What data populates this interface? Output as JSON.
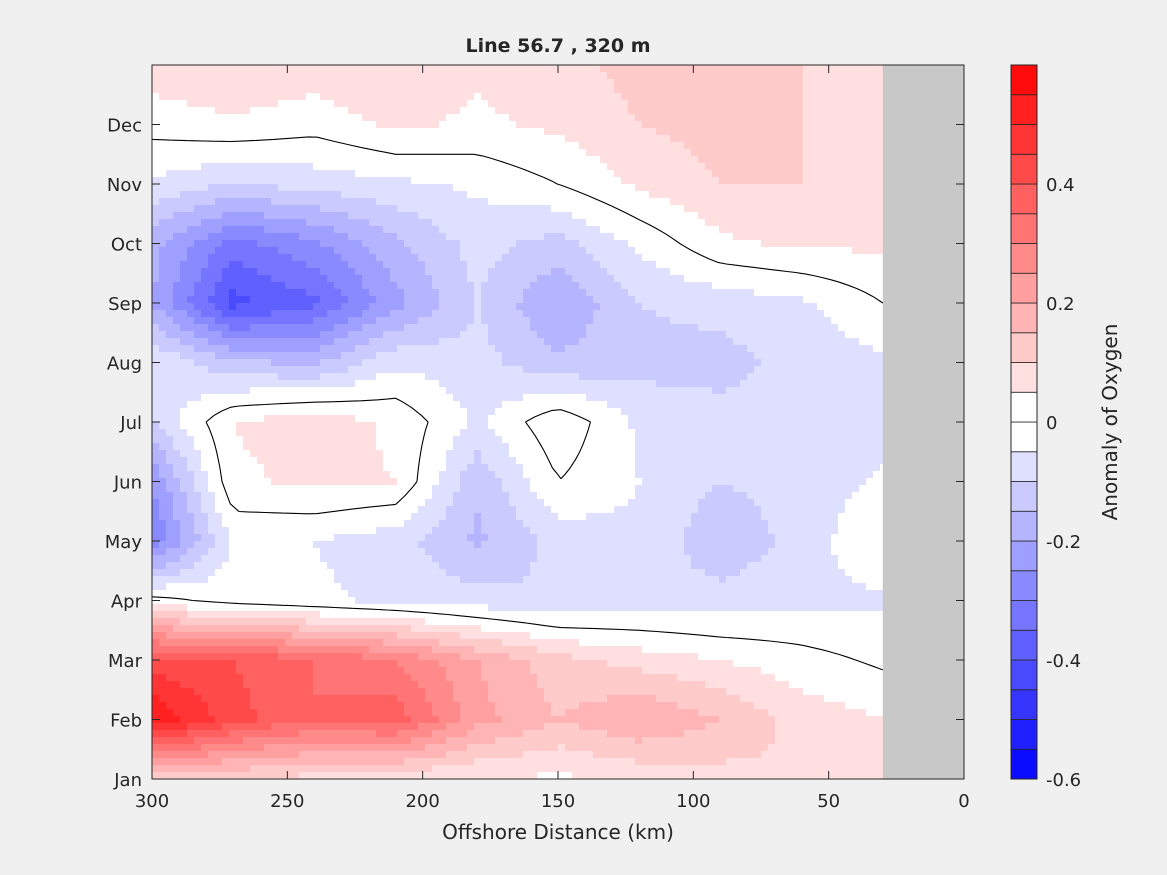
{
  "chart_data": {
    "type": "heatmap",
    "title": "Line 56.7 , 320 m",
    "xlabel": "Offshore Distance (km)",
    "ylabel": "",
    "colorbar_label": "Anomaly of Oxygen",
    "x_reversed": true,
    "xlim": [
      0,
      300
    ],
    "x_ticks": [
      300,
      250,
      200,
      150,
      100,
      50,
      0
    ],
    "y_categories": [
      "Jan",
      "Feb",
      "Mar",
      "Apr",
      "May",
      "Jun",
      "Jul",
      "Aug",
      "Sep",
      "Oct",
      "Nov",
      "Dec"
    ],
    "clim": [
      -0.6,
      0.6
    ],
    "colorbar_ticks": [
      0.4,
      0.2,
      0,
      -0.2,
      -0.4,
      -0.6
    ],
    "contour_levels_step": 0.05,
    "zero_contour": true,
    "no_data_region_x": [
      0,
      30
    ],
    "no_data_color": "#c8c8c8",
    "colors": {
      "positive": "#ff0000",
      "negative": "#0000ff",
      "zero": "#ffffff"
    },
    "grid_x": [
      300,
      270,
      240,
      210,
      180,
      150,
      120,
      90,
      60,
      30
    ],
    "grid_values": [
      [
        0.12,
        0.1,
        0.08,
        0.06,
        0.05,
        0.04,
        0.06,
        0.08,
        0.1,
        0.1
      ],
      [
        0.55,
        0.42,
        0.35,
        0.38,
        0.22,
        0.15,
        0.2,
        0.15,
        0.08,
        0.05
      ],
      [
        0.42,
        0.4,
        0.35,
        0.3,
        0.2,
        0.12,
        0.08,
        0.05,
        0.02,
        -0.01
      ],
      [
        0.02,
        -0.02,
        -0.04,
        -0.06,
        -0.08,
        -0.1,
        -0.08,
        -0.08,
        -0.06,
        -0.06
      ],
      [
        -0.3,
        -0.04,
        -0.05,
        -0.08,
        -0.16,
        -0.08,
        -0.06,
        -0.14,
        -0.08,
        0.0
      ],
      [
        -0.25,
        0.04,
        0.06,
        0.05,
        -0.14,
        0.0,
        -0.05,
        -0.1,
        -0.08,
        -0.04
      ],
      [
        -0.1,
        0.05,
        0.08,
        0.04,
        -0.06,
        0.04,
        -0.06,
        -0.08,
        -0.08,
        -0.08
      ],
      [
        -0.05,
        -0.14,
        -0.16,
        -0.06,
        -0.08,
        -0.14,
        -0.12,
        -0.12,
        -0.08,
        -0.06
      ],
      [
        -0.2,
        -0.42,
        -0.36,
        -0.22,
        -0.1,
        -0.2,
        -0.1,
        -0.08,
        -0.06,
        0.0
      ],
      [
        -0.18,
        -0.32,
        -0.26,
        -0.16,
        -0.08,
        -0.12,
        -0.04,
        0.04,
        0.06,
        0.06
      ],
      [
        -0.06,
        -0.1,
        -0.08,
        -0.06,
        -0.04,
        0.0,
        0.06,
        0.1,
        0.1,
        0.08
      ],
      [
        0.02,
        0.04,
        0.02,
        0.06,
        0.04,
        0.06,
        0.1,
        0.12,
        0.1,
        0.08
      ],
      [
        0.08,
        0.1,
        0.08,
        0.1,
        0.06,
        0.08,
        0.12,
        0.12,
        0.1,
        0.08
      ]
    ]
  }
}
